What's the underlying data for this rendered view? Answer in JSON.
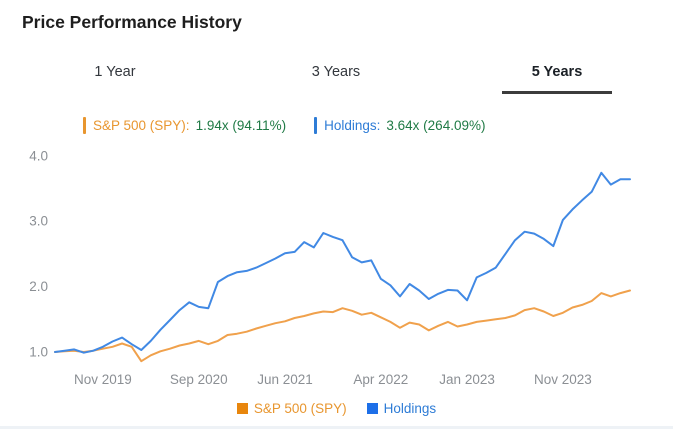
{
  "title": "Price Performance History",
  "tabs": {
    "items": [
      {
        "label": "1 Year",
        "active": false
      },
      {
        "label": "3 Years",
        "active": false
      },
      {
        "label": "5 Years",
        "active": true
      }
    ]
  },
  "summary": {
    "spy_label": "S&P 500 (SPY):",
    "spy_value": "1.94x (94.11%)",
    "holdings_label": "Holdings:",
    "holdings_value": "3.64x (264.09%)"
  },
  "colors": {
    "spy_text": "#E8962F",
    "spy_line": "#F0A14C",
    "holdings_text": "#2E7CD6",
    "holdings_line": "#4189E4",
    "value_green": "#1F7A45",
    "axis_gray": "#8B8F94",
    "tab_underline": "#3C3C3C"
  },
  "chart_data": {
    "type": "line",
    "title": "Price Performance History",
    "x_unit": "monthly points across 5 years",
    "n_points": 61,
    "x_tick_labels": [
      {
        "label": "Nov 2019",
        "index": 5
      },
      {
        "label": "Sep 2020",
        "index": 15
      },
      {
        "label": "Jun 2021",
        "index": 24
      },
      {
        "label": "Apr 2022",
        "index": 34
      },
      {
        "label": "Jan 2023",
        "index": 43
      },
      {
        "label": "Nov 2023",
        "index": 53
      }
    ],
    "y_ticks": [
      1.0,
      2.0,
      3.0,
      4.0
    ],
    "ylim": [
      0.78,
      4.15
    ],
    "grid": false,
    "legend_position": "bottom",
    "series": [
      {
        "name": "S&P 500 (SPY)",
        "color": "#F0A14C",
        "final_multiple": "1.94x",
        "final_return_pct": "94.11%",
        "values": [
          1.0,
          1.01,
          1.02,
          1.0,
          1.02,
          1.05,
          1.08,
          1.13,
          1.08,
          0.86,
          0.95,
          1.01,
          1.05,
          1.1,
          1.13,
          1.17,
          1.12,
          1.17,
          1.26,
          1.28,
          1.31,
          1.36,
          1.4,
          1.44,
          1.47,
          1.52,
          1.55,
          1.59,
          1.62,
          1.61,
          1.67,
          1.63,
          1.57,
          1.6,
          1.53,
          1.46,
          1.37,
          1.45,
          1.42,
          1.33,
          1.4,
          1.46,
          1.39,
          1.42,
          1.46,
          1.48,
          1.5,
          1.52,
          1.56,
          1.64,
          1.67,
          1.62,
          1.55,
          1.6,
          1.68,
          1.72,
          1.78,
          1.9,
          1.85,
          1.9,
          1.94
        ]
      },
      {
        "name": "Holdings",
        "color": "#4189E4",
        "final_multiple": "3.64x",
        "final_return_pct": "264.09%",
        "values": [
          1.0,
          1.02,
          1.04,
          0.99,
          1.02,
          1.08,
          1.16,
          1.22,
          1.12,
          1.03,
          1.17,
          1.34,
          1.49,
          1.64,
          1.76,
          1.69,
          1.67,
          2.07,
          2.16,
          2.22,
          2.24,
          2.29,
          2.36,
          2.43,
          2.51,
          2.53,
          2.68,
          2.6,
          2.82,
          2.76,
          2.71,
          2.45,
          2.37,
          2.4,
          2.12,
          2.02,
          1.85,
          2.04,
          1.94,
          1.81,
          1.89,
          1.95,
          1.94,
          1.79,
          2.14,
          2.21,
          2.29,
          2.5,
          2.71,
          2.84,
          2.81,
          2.73,
          2.62,
          3.02,
          3.18,
          3.32,
          3.45,
          3.74,
          3.56,
          3.64,
          3.64
        ]
      }
    ]
  },
  "bottom_legend": {
    "items": [
      {
        "label": "S&P 500 (SPY)",
        "swatch": "#E8860D",
        "text_color": "#E8962F"
      },
      {
        "label": "Holdings",
        "swatch": "#1D6FE8",
        "text_color": "#2E7CD6"
      }
    ]
  }
}
